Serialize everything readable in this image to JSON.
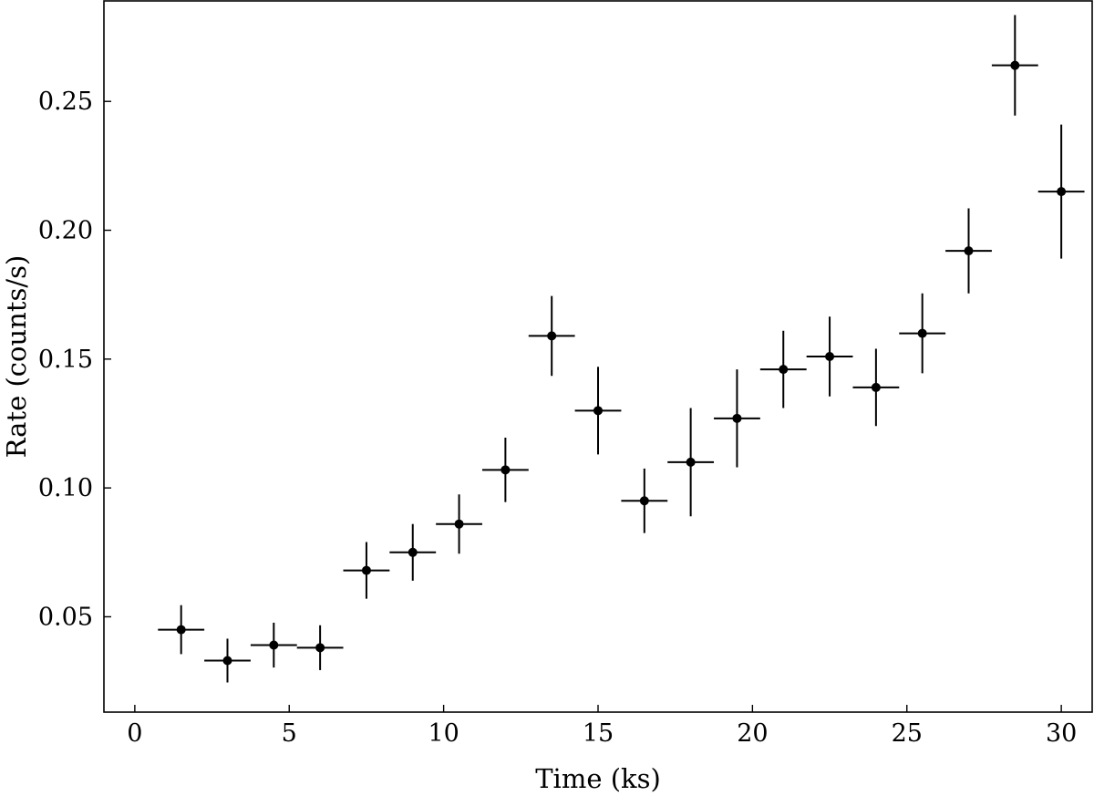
{
  "chart_data": {
    "type": "scatter",
    "title": "",
    "xlabel": "Time (ks)",
    "ylabel": "Rate (counts/s)",
    "xlim": [
      -1,
      31
    ],
    "ylim": [
      0.013,
      0.289
    ],
    "xticks": [
      0,
      5,
      10,
      15,
      20,
      25,
      30
    ],
    "xtick_labels": [
      "0",
      "5",
      "10",
      "15",
      "20",
      "25",
      "30"
    ],
    "yticks": [
      0.05,
      0.1,
      0.15,
      0.2,
      0.25
    ],
    "ytick_labels": [
      "0.05",
      "0.10",
      "0.15",
      "0.20",
      "0.25"
    ],
    "grid": false,
    "legend": "none",
    "colors": {
      "marker": "#000000",
      "errorbar": "#000000"
    },
    "x_error": 0.75,
    "series": [
      {
        "x": [
          1.5,
          3.0,
          4.5,
          6.0,
          7.5,
          9.0,
          10.5,
          12.0,
          13.5,
          15.0,
          16.5,
          18.0,
          19.5,
          21.0,
          22.5,
          24.0,
          25.5,
          27.0,
          28.5,
          30.0
        ],
        "y": [
          0.045,
          0.033,
          0.039,
          0.038,
          0.068,
          0.075,
          0.086,
          0.107,
          0.159,
          0.13,
          0.095,
          0.11,
          0.127,
          0.146,
          0.151,
          0.139,
          0.16,
          0.192,
          0.264,
          0.215
        ],
        "yerr": [
          0.0095,
          0.0085,
          0.0087,
          0.0087,
          0.011,
          0.011,
          0.0115,
          0.0125,
          0.0155,
          0.017,
          0.0125,
          0.021,
          0.019,
          0.015,
          0.0155,
          0.015,
          0.0155,
          0.0165,
          0.0195,
          0.026
        ]
      }
    ]
  }
}
